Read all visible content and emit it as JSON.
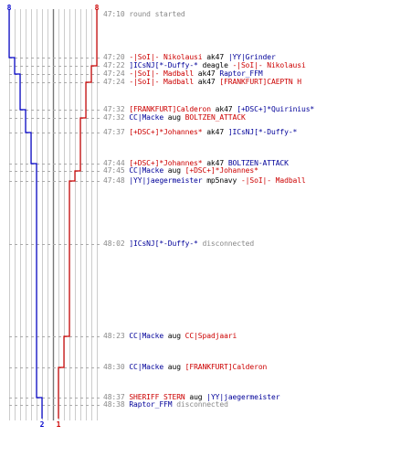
{
  "colors": {
    "team_blue": "#0000cc",
    "team_red": "#cc0000",
    "guide_lines": "#cccccc",
    "center_line": "#777777",
    "dash_lines": "#aaaaaa",
    "time_text": "#888888"
  },
  "scores": {
    "blue_start": "8",
    "red_start": "8",
    "blue_end": "2",
    "red_end": "1"
  },
  "events": [
    {
      "time": "47:10",
      "parts": [
        {
          "t": "round started",
          "c": "grey"
        }
      ]
    },
    {
      "time": "47:20",
      "parts": [
        {
          "t": "-|SoI|- Nikolausi",
          "c": "red"
        },
        {
          "t": " ak47 ",
          "c": "blk"
        },
        {
          "t": "|YY|Grinder",
          "c": "blue"
        }
      ]
    },
    {
      "time": "47:22",
      "parts": [
        {
          "t": "]ICsNJ[*-Duffy-*",
          "c": "blue"
        },
        {
          "t": " deagle ",
          "c": "blk"
        },
        {
          "t": "-|SoI|- Nikolausi",
          "c": "red"
        }
      ]
    },
    {
      "time": "47:24",
      "parts": [
        {
          "t": "-|SoI|- Madball",
          "c": "red"
        },
        {
          "t": " ak47 ",
          "c": "blk"
        },
        {
          "t": "Raptor_FFM",
          "c": "blue"
        }
      ]
    },
    {
      "time": "47:24",
      "parts": [
        {
          "t": "-|SoI|- Madball",
          "c": "red"
        },
        {
          "t": " ak47 ",
          "c": "blk"
        },
        {
          "t": "[FRANKFURT]CAEPTN H",
          "c": "red"
        }
      ]
    },
    {
      "time": "47:32",
      "parts": [
        {
          "t": "[FRANKFURT]Calderon",
          "c": "red"
        },
        {
          "t": " ak47 ",
          "c": "blk"
        },
        {
          "t": "[+DSC+]*Quirinius*",
          "c": "blue"
        }
      ]
    },
    {
      "time": "47:32",
      "parts": [
        {
          "t": "CC|Macke",
          "c": "blue"
        },
        {
          "t": " aug ",
          "c": "blk"
        },
        {
          "t": "BOLTZEN_ATTACK",
          "c": "red"
        }
      ]
    },
    {
      "time": "47:37",
      "parts": [
        {
          "t": "[+DSC+]*Johannes*",
          "c": "red"
        },
        {
          "t": " ak47 ",
          "c": "blk"
        },
        {
          "t": "]ICsNJ[*-Duffy-*",
          "c": "blue"
        }
      ]
    },
    {
      "time": "47:44",
      "parts": [
        {
          "t": "[+DSC+]*Johannes*",
          "c": "red"
        },
        {
          "t": " ak47 ",
          "c": "blk"
        },
        {
          "t": "BOLTZEN-ATTACK",
          "c": "blue"
        }
      ]
    },
    {
      "time": "47:45",
      "parts": [
        {
          "t": "CC|Macke",
          "c": "blue"
        },
        {
          "t": " aug ",
          "c": "blk"
        },
        {
          "t": "[+DSC+]*Johannes*",
          "c": "red"
        }
      ]
    },
    {
      "time": "47:48",
      "parts": [
        {
          "t": "|YY|jaegermeister",
          "c": "blue"
        },
        {
          "t": " mp5navy ",
          "c": "blk"
        },
        {
          "t": "-|SoI|- Madball",
          "c": "red"
        }
      ]
    },
    {
      "time": "48:02",
      "parts": [
        {
          "t": "]ICsNJ[*-Duffy-*",
          "c": "blue"
        },
        {
          "t": " disconnected",
          "c": "grey"
        }
      ]
    },
    {
      "time": "48:23",
      "parts": [
        {
          "t": "CC|Macke",
          "c": "blue"
        },
        {
          "t": " aug ",
          "c": "blk"
        },
        {
          "t": "CC|Spadjaari",
          "c": "red"
        }
      ]
    },
    {
      "time": "48:30",
      "parts": [
        {
          "t": "CC|Macke",
          "c": "blue"
        },
        {
          "t": " aug ",
          "c": "blk"
        },
        {
          "t": "[FRANKFURT]Calderon",
          "c": "red"
        }
      ]
    },
    {
      "time": "48:37",
      "parts": [
        {
          "t": "SHERIFF STERN",
          "c": "red"
        },
        {
          "t": " aug ",
          "c": "blk"
        },
        {
          "t": "|YY|jaegermeister",
          "c": "blue"
        }
      ]
    },
    {
      "time": "48:38",
      "parts": [
        {
          "t": "Raptor_FFM",
          "c": "blue"
        },
        {
          "t": " disconnected",
          "c": "grey"
        }
      ]
    }
  ]
}
